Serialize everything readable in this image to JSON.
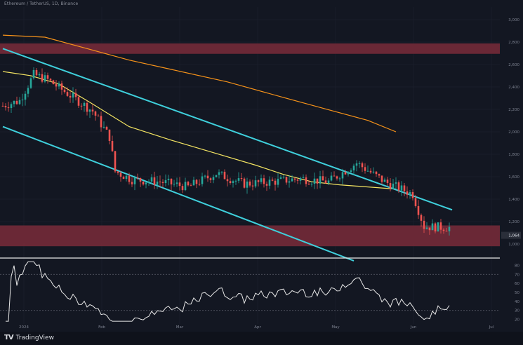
{
  "header": {
    "title": "Ethereum / TetherUS, 1D, Binance"
  },
  "brand": {
    "name": "TradingView",
    "mark": "TV"
  },
  "colors": {
    "background": "#131722",
    "grid": "#1f2330",
    "up": "#26a69a",
    "down": "#ef5350",
    "zone": "#7a2c3a",
    "channel": "#3fd0dc",
    "ma_long": "#f7931a",
    "ma_short": "#f5e663",
    "rsi": "#e8e8e8"
  },
  "chart_data": {
    "type": "candlestick",
    "title": "Ethereum / TetherUS, 1D, Binance",
    "xlabel": "",
    "ylabel": "",
    "x_ticks": [
      "2024",
      "Feb",
      "Mar",
      "Apr",
      "May",
      "Jun",
      "Jul"
    ],
    "y_ticks": [
      "3,000",
      "2,800",
      "2,600",
      "2,400",
      "2,200",
      "2,000",
      "1,800",
      "1,600",
      "1,400",
      "1,200",
      "1,000"
    ],
    "ylim": [
      900,
      3300
    ],
    "price_label": "1,064",
    "zones": [
      {
        "low": 2850,
        "high": 2950
      },
      {
        "low": 1000,
        "high": 1200
      }
    ],
    "channel_upper": [
      [
        0,
        2900
      ],
      [
        160,
        1350
      ]
    ],
    "channel_lower": [
      [
        0,
        2150
      ],
      [
        125,
        860
      ]
    ],
    "ma_200": [
      [
        0,
        3030
      ],
      [
        15,
        3010
      ],
      [
        30,
        2900
      ],
      [
        45,
        2790
      ],
      [
        60,
        2700
      ],
      [
        80,
        2580
      ],
      [
        100,
        2430
      ],
      [
        115,
        2320
      ],
      [
        130,
        2210
      ],
      [
        140,
        2100
      ]
    ],
    "ma_100": [
      [
        0,
        2680
      ],
      [
        10,
        2640
      ],
      [
        20,
        2560
      ],
      [
        30,
        2400
      ],
      [
        45,
        2150
      ],
      [
        60,
        2020
      ],
      [
        75,
        1900
      ],
      [
        90,
        1780
      ],
      [
        100,
        1690
      ],
      [
        110,
        1620
      ],
      [
        120,
        1590
      ],
      [
        140,
        1550
      ]
    ],
    "rsi_levels": [
      70,
      30
    ],
    "rsi_ylim": [
      15,
      85
    ],
    "rsi_ticks": [
      "80",
      "70",
      "60",
      "50",
      "40",
      "30",
      "20"
    ]
  }
}
